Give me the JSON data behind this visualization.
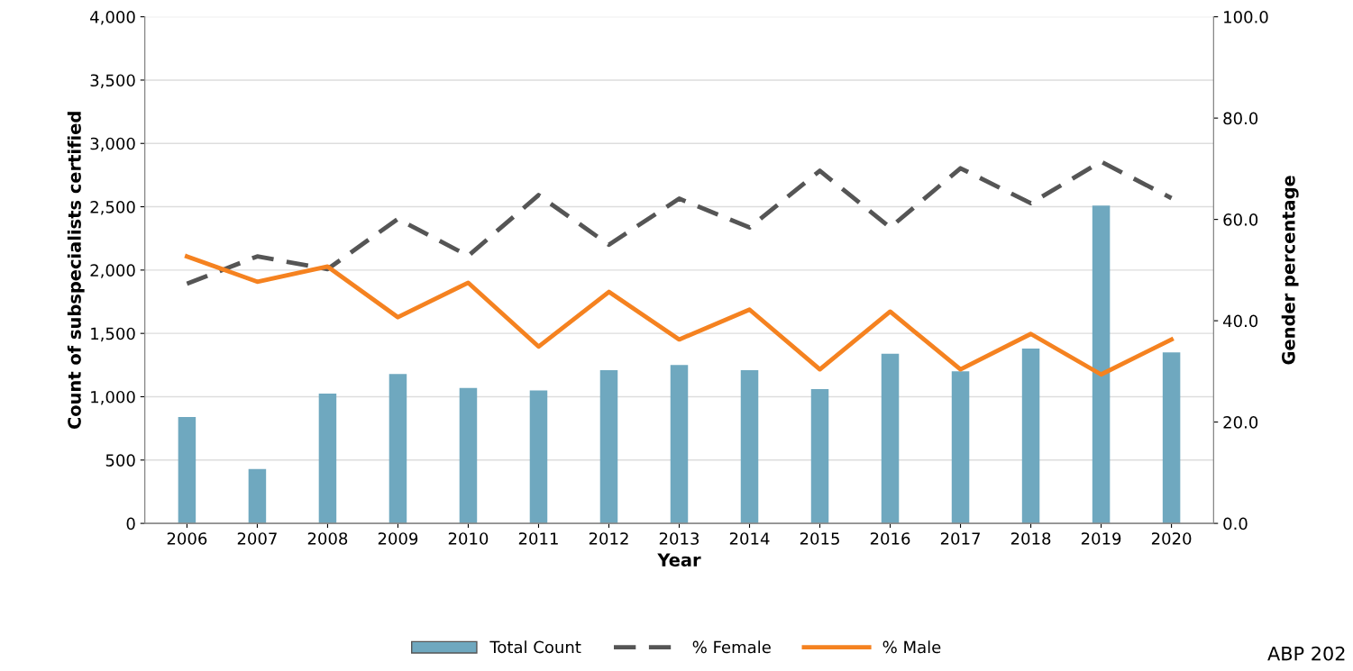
{
  "chart_data": {
    "type": "bar",
    "xlabel": "Year",
    "ylabel": "Count of subspecialists certified",
    "y2label": "Gender percentage",
    "categories": [
      "2006",
      "2007",
      "2008",
      "2009",
      "2010",
      "2011",
      "2012",
      "2013",
      "2014",
      "2015",
      "2016",
      "2017",
      "2018",
      "2019",
      "2020"
    ],
    "series": [
      {
        "name": "Total Count",
        "color": "#6fa8bf",
        "values": [
          840,
          430,
          1025,
          1180,
          1070,
          1050,
          1210,
          1250,
          1210,
          1060,
          1340,
          1200,
          1380,
          2510,
          1350
        ]
      },
      {
        "name": "% Female",
        "type": "line",
        "axis": "y2",
        "color": "#555555",
        "line_style": "dashed",
        "values": [
          47.3,
          52.7,
          50.2,
          60.1,
          52.8,
          64.8,
          55.0,
          64.1,
          58.4,
          69.6,
          58.4,
          70.1,
          63.2,
          71.4,
          64.2
        ]
      },
      {
        "name": "% Male",
        "type": "line",
        "axis": "y2",
        "color": "#f58220",
        "line_style": "solid",
        "values": [
          52.7,
          47.7,
          50.7,
          40.7,
          47.5,
          34.9,
          45.7,
          36.3,
          42.2,
          30.4,
          41.8,
          30.4,
          37.4,
          29.4,
          36.3
        ]
      }
    ],
    "ylim": [
      0,
      4000
    ],
    "yticks": [
      {
        "value": 0,
        "label": "0"
      },
      {
        "value": 500,
        "label": "500"
      },
      {
        "value": 1000,
        "label": "1,000"
      },
      {
        "value": 1500,
        "label": "1,500"
      },
      {
        "value": 2000,
        "label": "2,000"
      },
      {
        "value": 2500,
        "label": "2,500"
      },
      {
        "value": 3000,
        "label": "3,000"
      },
      {
        "value": 3500,
        "label": "3,500"
      },
      {
        "value": 4000,
        "label": "4,000"
      }
    ],
    "y2lim": [
      0,
      100
    ],
    "y2ticks": [
      {
        "value": 0,
        "label": "0.0"
      },
      {
        "value": 20,
        "label": "20.0"
      },
      {
        "value": 40,
        "label": "40.0"
      },
      {
        "value": 60,
        "label": "60.0"
      },
      {
        "value": 80,
        "label": "80.0"
      },
      {
        "value": 100,
        "label": "100.0"
      }
    ],
    "grid": "y",
    "legend": "bottom",
    "marker": "none",
    "annotations": [
      "ABP 202"
    ]
  }
}
